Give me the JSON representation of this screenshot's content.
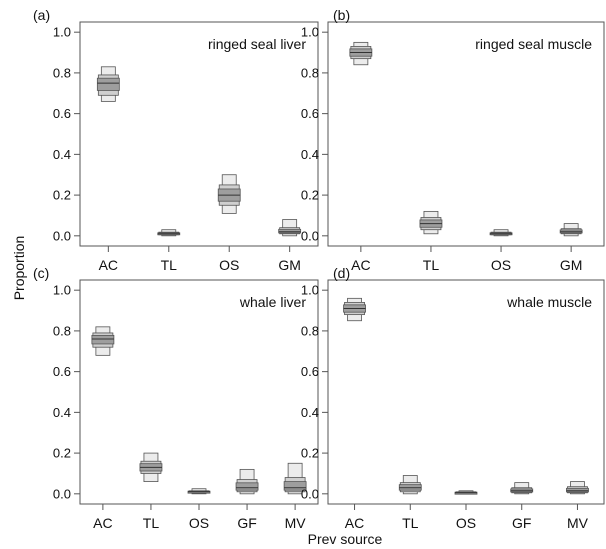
{
  "figure": {
    "xlabel": "Prev source",
    "ylabel": "Proportion"
  },
  "style": {
    "outer_fill": "#ececec",
    "mid_fill": "#cfcfcf",
    "inner_fill": "#9e9e9e",
    "stroke": "#555555"
  },
  "chart_data": [
    {
      "type": "boxplot",
      "id": "a",
      "label": "(a)",
      "title": "ringed seal liver",
      "categories": [
        "AC",
        "TL",
        "OS",
        "GM"
      ],
      "ylim": [
        -0.05,
        1.05
      ],
      "yticks": [
        "0.0",
        "0.2",
        "0.4",
        "0.6",
        "0.8",
        "1.0"
      ],
      "distributions": [
        {
          "category": "AC",
          "q05": 0.66,
          "q25": 0.69,
          "q50": 0.75,
          "q75": 0.79,
          "q95": 0.83
        },
        {
          "category": "TL",
          "q05": 0.0,
          "q25": 0.005,
          "q50": 0.01,
          "q75": 0.018,
          "q95": 0.03
        },
        {
          "category": "OS",
          "q05": 0.11,
          "q25": 0.15,
          "q50": 0.2,
          "q75": 0.25,
          "q95": 0.3
        },
        {
          "category": "GM",
          "q05": 0.0,
          "q25": 0.01,
          "q50": 0.02,
          "q75": 0.04,
          "q95": 0.08
        }
      ]
    },
    {
      "type": "boxplot",
      "id": "b",
      "label": "(b)",
      "title": "ringed seal muscle",
      "categories": [
        "AC",
        "TL",
        "OS",
        "GM"
      ],
      "ylim": [
        -0.05,
        1.05
      ],
      "yticks": [
        "0.0",
        "0.2",
        "0.4",
        "0.6",
        "0.8",
        "1.0"
      ],
      "distributions": [
        {
          "category": "AC",
          "q05": 0.84,
          "q25": 0.87,
          "q50": 0.9,
          "q75": 0.93,
          "q95": 0.95
        },
        {
          "category": "TL",
          "q05": 0.01,
          "q25": 0.03,
          "q50": 0.06,
          "q75": 0.09,
          "q95": 0.12
        },
        {
          "category": "OS",
          "q05": 0.0,
          "q25": 0.005,
          "q50": 0.01,
          "q75": 0.018,
          "q95": 0.03
        },
        {
          "category": "GM",
          "q05": 0.0,
          "q25": 0.01,
          "q50": 0.02,
          "q75": 0.035,
          "q95": 0.06
        }
      ]
    },
    {
      "type": "boxplot",
      "id": "c",
      "label": "(c)",
      "title": "whale liver",
      "categories": [
        "AC",
        "TL",
        "OS",
        "GF",
        "MV"
      ],
      "ylim": [
        -0.05,
        1.05
      ],
      "yticks": [
        "0.0",
        "0.2",
        "0.4",
        "0.6",
        "0.8",
        "1.0"
      ],
      "distributions": [
        {
          "category": "AC",
          "q05": 0.68,
          "q25": 0.72,
          "q50": 0.76,
          "q75": 0.79,
          "q95": 0.82
        },
        {
          "category": "TL",
          "q05": 0.06,
          "q25": 0.1,
          "q50": 0.13,
          "q75": 0.16,
          "q95": 0.2
        },
        {
          "category": "OS",
          "q05": 0.0,
          "q25": 0.005,
          "q50": 0.01,
          "q75": 0.015,
          "q95": 0.025
        },
        {
          "category": "GF",
          "q05": 0.0,
          "q25": 0.01,
          "q50": 0.03,
          "q75": 0.07,
          "q95": 0.12
        },
        {
          "category": "MV",
          "q05": 0.0,
          "q25": 0.01,
          "q50": 0.03,
          "q75": 0.08,
          "q95": 0.15
        }
      ]
    },
    {
      "type": "boxplot",
      "id": "d",
      "label": "(d)",
      "title": "whale muscle",
      "categories": [
        "AC",
        "TL",
        "OS",
        "GF",
        "MV"
      ],
      "ylim": [
        -0.05,
        1.05
      ],
      "yticks": [
        "0.0",
        "0.2",
        "0.4",
        "0.6",
        "0.8",
        "1.0"
      ],
      "distributions": [
        {
          "category": "AC",
          "q05": 0.85,
          "q25": 0.88,
          "q50": 0.91,
          "q75": 0.94,
          "q95": 0.96
        },
        {
          "category": "TL",
          "q05": 0.0,
          "q25": 0.01,
          "q50": 0.03,
          "q75": 0.055,
          "q95": 0.09
        },
        {
          "category": "OS",
          "q05": 0.0,
          "q25": 0.003,
          "q50": 0.005,
          "q75": 0.01,
          "q95": 0.015
        },
        {
          "category": "GF",
          "q05": 0.0,
          "q25": 0.005,
          "q50": 0.015,
          "q75": 0.03,
          "q95": 0.055
        },
        {
          "category": "MV",
          "q05": 0.0,
          "q25": 0.005,
          "q50": 0.015,
          "q75": 0.035,
          "q95": 0.06
        }
      ]
    }
  ]
}
